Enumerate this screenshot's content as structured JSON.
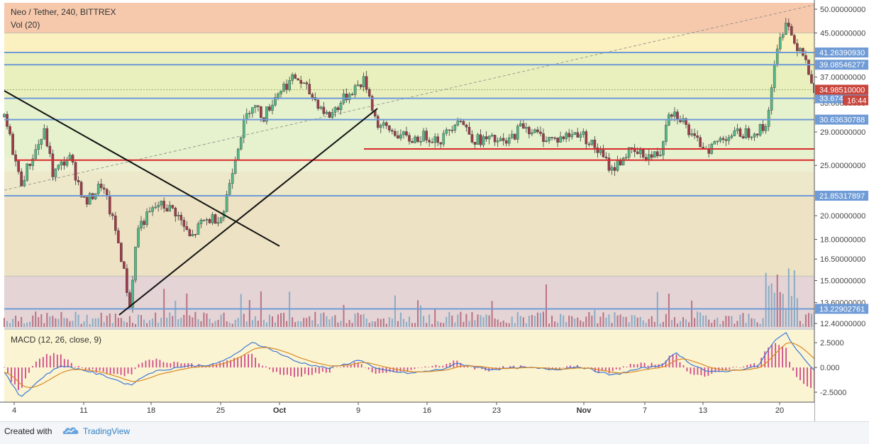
{
  "header": {
    "title": "Neo / Tether, 240, BITTREX",
    "vol_label": "Vol (20)"
  },
  "macd": {
    "label": "MACD (12, 26, close, 9)",
    "ticks": [
      "2.5000",
      "0.000",
      "-2.5000"
    ]
  },
  "footer": {
    "created_with": "Created with",
    "brand": "TradingView"
  },
  "colors": {
    "up": "#53b987",
    "down": "#a03a4a",
    "hline_blue": "#6f9bd6",
    "red_line": "#d52c2c",
    "macd": "#3c78d8",
    "signal": "#d98a26"
  },
  "chart_data": {
    "type": "candlestick",
    "title": "Neo / Tether, 240, BITTREX",
    "x_ticks": [
      "4",
      "11",
      "18",
      "25",
      "Oct",
      "9",
      "16",
      "23",
      "Nov",
      "7",
      "13",
      "20"
    ],
    "y_range": [
      12.4,
      50.0
    ],
    "y_ticks": [
      "50.00000000",
      "45.00000000",
      "37.00000000",
      "33.00000000",
      "29.00000000",
      "25.00000000",
      "20.00000000",
      "18.00000000",
      "16.50000000",
      "15.00000000",
      "13.60000000",
      "12.40000000"
    ],
    "y_tick_values": [
      50.0,
      45.0,
      37.0,
      33.0,
      29.0,
      25.0,
      20.0,
      18.0,
      16.5,
      15.0,
      13.6,
      12.4
    ],
    "horizontal_levels": [
      {
        "label": "41.26390930",
        "value": 41.2639093
      },
      {
        "label": "39.08546277",
        "value": 39.08546277
      },
      {
        "label": "33.67464461",
        "value": 33.67464461
      },
      {
        "label": "30.63630788",
        "value": 30.63630788
      },
      {
        "label": "21.85317897",
        "value": 21.85317897
      },
      {
        "label": "13.22902761",
        "value": 13.22902761
      }
    ],
    "last_price": {
      "label": "34.98510000",
      "value": 34.9851
    },
    "countdown": "16:44",
    "support_lines": [
      25.6,
      26.9
    ],
    "price_path": [
      [
        0,
        31
      ],
      [
        0.02,
        23
      ],
      [
        0.05,
        29
      ],
      [
        0.06,
        24
      ],
      [
        0.08,
        26
      ],
      [
        0.1,
        21
      ],
      [
        0.12,
        23
      ],
      [
        0.14,
        18
      ],
      [
        0.155,
        13.3
      ],
      [
        0.165,
        19
      ],
      [
        0.19,
        21
      ],
      [
        0.21,
        20.5
      ],
      [
        0.23,
        18
      ],
      [
        0.245,
        19.5
      ],
      [
        0.27,
        20
      ],
      [
        0.29,
        28
      ],
      [
        0.305,
        33
      ],
      [
        0.32,
        31
      ],
      [
        0.34,
        35
      ],
      [
        0.36,
        37
      ],
      [
        0.38,
        34
      ],
      [
        0.4,
        31
      ],
      [
        0.43,
        35
      ],
      [
        0.445,
        36.5
      ],
      [
        0.46,
        30
      ],
      [
        0.48,
        29
      ],
      [
        0.5,
        28
      ],
      [
        0.52,
        28.5
      ],
      [
        0.54,
        28
      ],
      [
        0.56,
        31
      ],
      [
        0.58,
        28
      ],
      [
        0.6,
        28
      ],
      [
        0.62,
        27.5
      ],
      [
        0.64,
        30
      ],
      [
        0.66,
        28.5
      ],
      [
        0.68,
        28
      ],
      [
        0.71,
        29
      ],
      [
        0.73,
        27
      ],
      [
        0.75,
        24.5
      ],
      [
        0.77,
        26.5
      ],
      [
        0.8,
        26
      ],
      [
        0.81,
        26.5
      ],
      [
        0.82,
        32
      ],
      [
        0.835,
        31
      ],
      [
        0.85,
        28
      ],
      [
        0.87,
        27
      ],
      [
        0.89,
        28.5
      ],
      [
        0.92,
        29
      ],
      [
        0.94,
        29.5
      ],
      [
        0.955,
        42
      ],
      [
        0.965,
        48
      ],
      [
        0.975,
        43
      ],
      [
        0.985,
        42
      ],
      [
        1.0,
        35
      ]
    ],
    "macd_range": [
      -3.5,
      3.8
    ],
    "macd_path": [
      [
        0,
        -0.5
      ],
      [
        0.02,
        -3.0
      ],
      [
        0.05,
        -0.8
      ],
      [
        0.07,
        0.2
      ],
      [
        0.1,
        -0.3
      ],
      [
        0.13,
        -1.0
      ],
      [
        0.155,
        -1.8
      ],
      [
        0.18,
        -0.5
      ],
      [
        0.22,
        0.1
      ],
      [
        0.26,
        0.3
      ],
      [
        0.29,
        1.5
      ],
      [
        0.305,
        2.6
      ],
      [
        0.33,
        1.8
      ],
      [
        0.36,
        0.6
      ],
      [
        0.4,
        -0.1
      ],
      [
        0.42,
        0.3
      ],
      [
        0.44,
        0.8
      ],
      [
        0.46,
        -0.2
      ],
      [
        0.5,
        -0.6
      ],
      [
        0.54,
        -0.2
      ],
      [
        0.56,
        0.4
      ],
      [
        0.6,
        -0.2
      ],
      [
        0.64,
        0.0
      ],
      [
        0.68,
        -0.2
      ],
      [
        0.71,
        0.1
      ],
      [
        0.75,
        -0.8
      ],
      [
        0.78,
        -0.2
      ],
      [
        0.81,
        0.2
      ],
      [
        0.83,
        1.5
      ],
      [
        0.845,
        0.5
      ],
      [
        0.87,
        -0.5
      ],
      [
        0.9,
        -0.3
      ],
      [
        0.93,
        0.1
      ],
      [
        0.95,
        2.6
      ],
      [
        0.965,
        3.5
      ],
      [
        0.98,
        1.5
      ],
      [
        1.0,
        -0.2
      ]
    ]
  }
}
